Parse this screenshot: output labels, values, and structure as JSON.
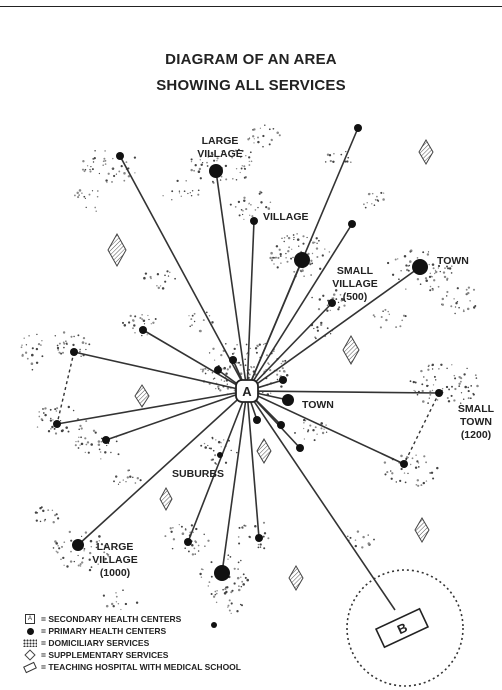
{
  "title": {
    "line1": "DIAGRAM OF AN AREA",
    "line2": "SHOWING ALL SERVICES"
  },
  "labels": {
    "large_village_top": [
      "LARGE",
      "VILLAGE"
    ],
    "village": "VILLAGE",
    "small_village": [
      "SMALL",
      "VILLAGE",
      "(500)"
    ],
    "town_right": "TOWN",
    "town_center": "TOWN",
    "small_town": [
      "SMALL",
      "TOWN",
      "(1200)"
    ],
    "suburbs": "SUBURBS",
    "large_village_bottom": [
      "LARGE",
      "VILLAGE",
      "(1000)"
    ],
    "center_marker": "A",
    "hospital_marker": "B"
  },
  "legend": [
    {
      "icon": "secondary-health-center-square-icon",
      "text": "= SECONDARY HEALTH CENTERS"
    },
    {
      "icon": "primary-health-center-dot-icon",
      "text": "= PRIMARY HEALTH CENTERS"
    },
    {
      "icon": "domiciliary-dots-icon",
      "text": "= DOMICILIARY SERVICES"
    },
    {
      "icon": "supplementary-diamond-icon",
      "text": "= SUPPLEMENTARY SERVICES"
    },
    {
      "icon": "teaching-hospital-rect-icon",
      "text": "= TEACHING HOSPITAL WITH MEDICAL SCHOOL"
    }
  ]
}
